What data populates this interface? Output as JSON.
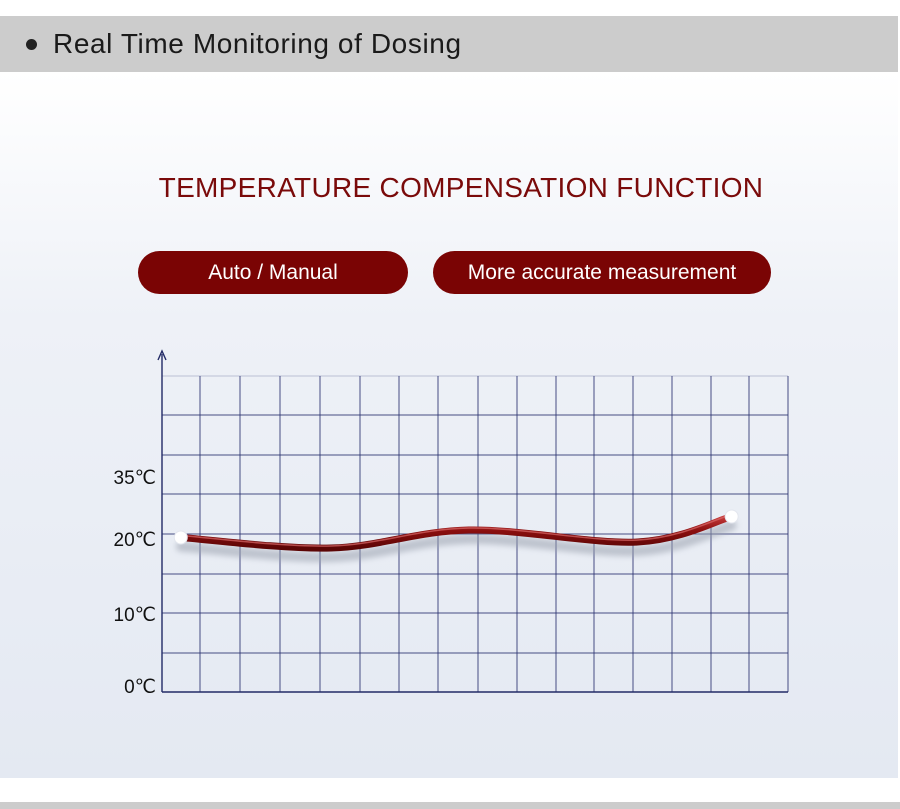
{
  "section": {
    "title": "Real Time Monitoring of Dosing"
  },
  "feature": {
    "title": "TEMPERATURE COMPENSATION FUNCTION",
    "pills": [
      "Auto / Manual",
      "More accurate measurement"
    ]
  },
  "chart_data": {
    "type": "line",
    "title": "",
    "xlabel": "",
    "ylabel": "",
    "y_tick_labels": [
      "35℃",
      "20℃",
      "10℃",
      "0℃"
    ],
    "grid": true,
    "series": [
      {
        "values": [
          {
            "x": 0.03,
            "y": 20.2
          },
          {
            "x": 0.27,
            "y": 18.8
          },
          {
            "x": 0.49,
            "y": 21.2
          },
          {
            "x": 0.76,
            "y": 19.6
          },
          {
            "x": 0.91,
            "y": 23.0
          }
        ]
      }
    ]
  },
  "colors": {
    "accent": "#7a0404",
    "grid": "#2a3170",
    "curve": "#8b0f0f",
    "header_bg": "#cccccc"
  }
}
